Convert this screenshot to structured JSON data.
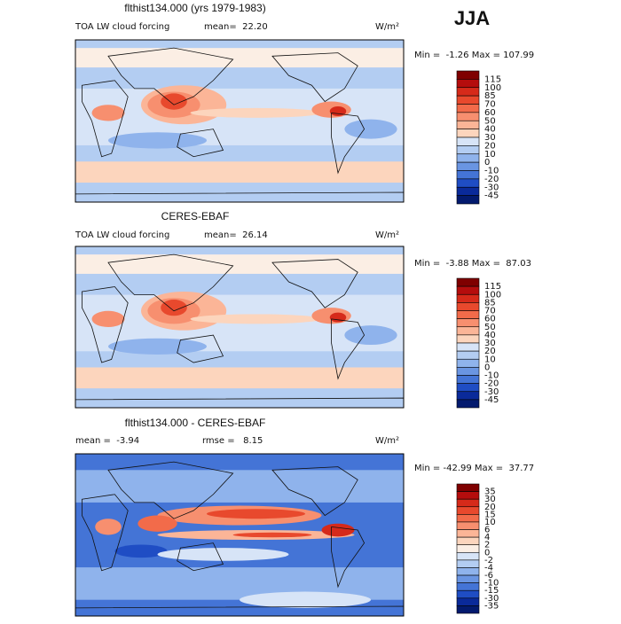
{
  "header": {
    "season": "JJA"
  },
  "panels": [
    {
      "title": "flthist134.000 (yrs 1979-1983)",
      "stats": [
        "TOA LW cloud forcing",
        "mean=  22.20"
      ],
      "units": "W/m²",
      "range": "Min =  -1.26 Max = 107.99",
      "levels": [
        115,
        100,
        85,
        70,
        60,
        50,
        40,
        30,
        20,
        10,
        0,
        -10,
        -20,
        -30,
        -45
      ]
    },
    {
      "title": "CERES-EBAF",
      "stats": [
        "TOA LW cloud forcing",
        "mean=  26.14"
      ],
      "units": "W/m²",
      "range": "Min =  -3.88 Max =  87.03",
      "levels": [
        115,
        100,
        85,
        70,
        60,
        50,
        40,
        30,
        20,
        10,
        0,
        -10,
        -20,
        -30,
        -45
      ]
    },
    {
      "title": "flthist134.000 - CERES-EBAF",
      "stats": [
        "mean =  -3.94",
        "rmse =   8.15"
      ],
      "units": "W/m²",
      "range": "Min = -42.99 Max =  37.77",
      "levels": [
        35,
        30,
        20,
        15,
        10,
        6,
        4,
        2,
        0,
        -2,
        -4,
        -6,
        -10,
        -15,
        -30,
        -35
      ]
    }
  ]
}
